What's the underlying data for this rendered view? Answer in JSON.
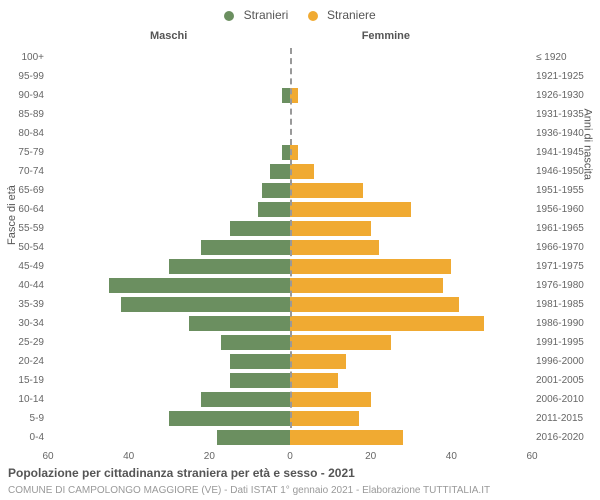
{
  "legend": {
    "male": {
      "label": "Stranieri",
      "color": "#6b8f60"
    },
    "female": {
      "label": "Straniere",
      "color": "#f0aa32"
    }
  },
  "subtitles": {
    "left": "Maschi",
    "right": "Femmine"
  },
  "y_labels": {
    "left": "Fasce di età",
    "right": "Anni di nascita"
  },
  "chart": {
    "type": "population_pyramid",
    "x_max": 60,
    "x_ticks": [
      60,
      40,
      20,
      0,
      20,
      40,
      60
    ],
    "background_color": "#ffffff",
    "center_line_color": "#999999",
    "rows": [
      {
        "age": "100+",
        "year": "≤ 1920",
        "m": 0,
        "f": 0
      },
      {
        "age": "95-99",
        "year": "1921-1925",
        "m": 0,
        "f": 0
      },
      {
        "age": "90-94",
        "year": "1926-1930",
        "m": 2,
        "f": 2
      },
      {
        "age": "85-89",
        "year": "1931-1935",
        "m": 0,
        "f": 0
      },
      {
        "age": "80-84",
        "year": "1936-1940",
        "m": 0,
        "f": 0
      },
      {
        "age": "75-79",
        "year": "1941-1945",
        "m": 2,
        "f": 2
      },
      {
        "age": "70-74",
        "year": "1946-1950",
        "m": 5,
        "f": 6
      },
      {
        "age": "65-69",
        "year": "1951-1955",
        "m": 7,
        "f": 18
      },
      {
        "age": "60-64",
        "year": "1956-1960",
        "m": 8,
        "f": 30
      },
      {
        "age": "55-59",
        "year": "1961-1965",
        "m": 15,
        "f": 20
      },
      {
        "age": "50-54",
        "year": "1966-1970",
        "m": 22,
        "f": 22
      },
      {
        "age": "45-49",
        "year": "1971-1975",
        "m": 30,
        "f": 40
      },
      {
        "age": "40-44",
        "year": "1976-1980",
        "m": 45,
        "f": 38
      },
      {
        "age": "35-39",
        "year": "1981-1985",
        "m": 42,
        "f": 42
      },
      {
        "age": "30-34",
        "year": "1986-1990",
        "m": 25,
        "f": 48
      },
      {
        "age": "25-29",
        "year": "1991-1995",
        "m": 17,
        "f": 25
      },
      {
        "age": "20-24",
        "year": "1996-2000",
        "m": 15,
        "f": 14
      },
      {
        "age": "15-19",
        "year": "2001-2005",
        "m": 15,
        "f": 12
      },
      {
        "age": "10-14",
        "year": "2006-2010",
        "m": 22,
        "f": 20
      },
      {
        "age": "5-9",
        "year": "2011-2015",
        "m": 30,
        "f": 17
      },
      {
        "age": "0-4",
        "year": "2016-2020",
        "m": 18,
        "f": 28
      }
    ]
  },
  "title": "Popolazione per cittadinanza straniera per età e sesso - 2021",
  "footer": "COMUNE DI CAMPOLONGO MAGGIORE (VE) - Dati ISTAT 1° gennaio 2021 - Elaborazione TUTTITALIA.IT"
}
